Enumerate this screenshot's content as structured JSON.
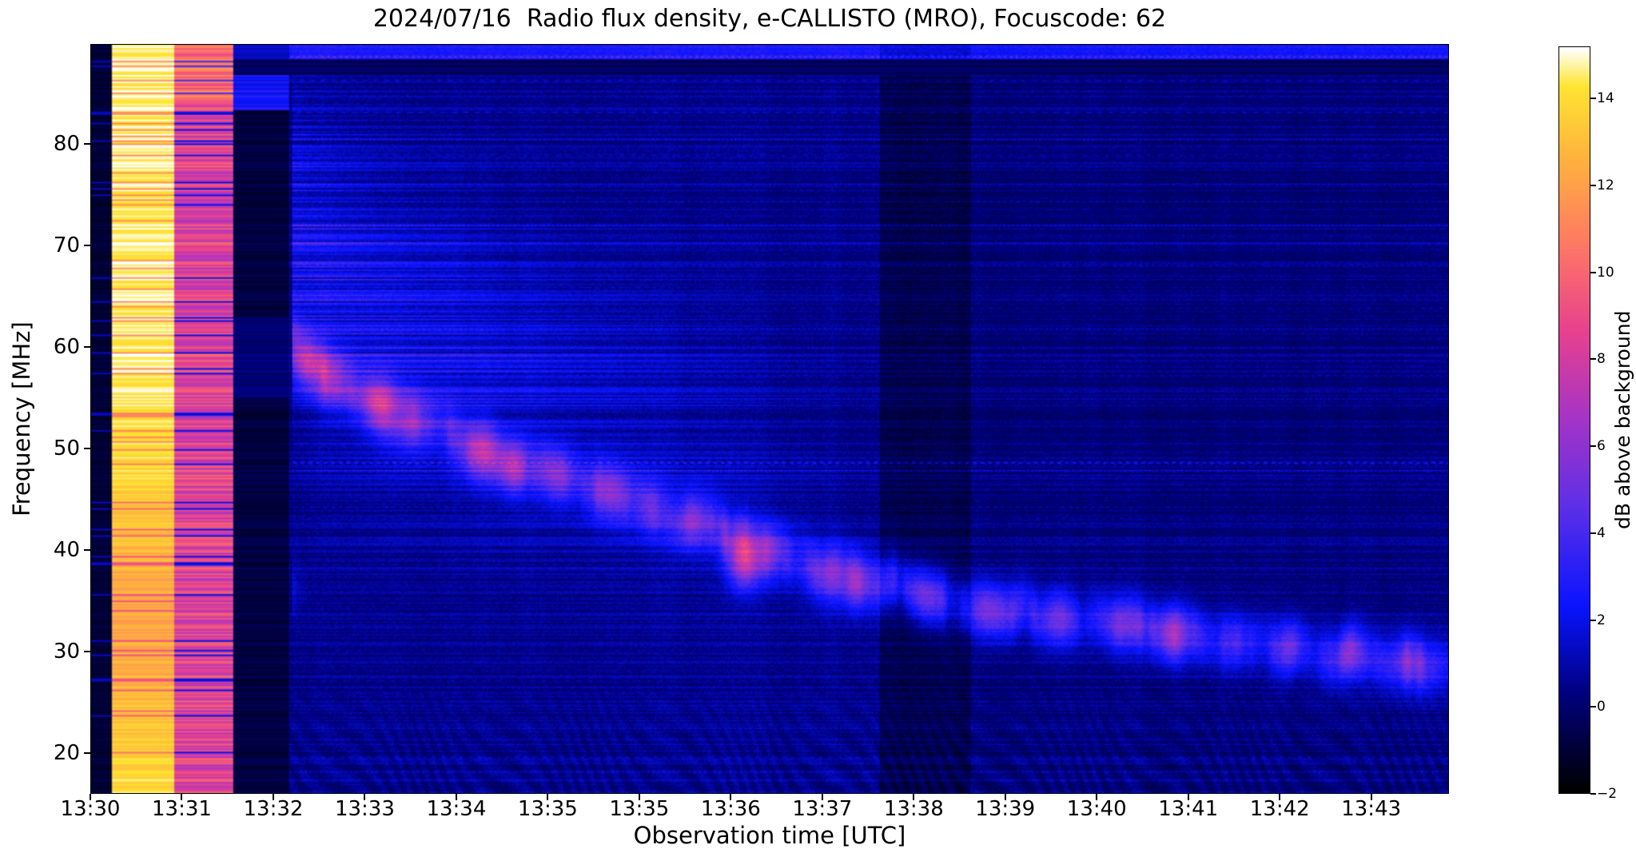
{
  "chart_data": {
    "type": "heatmap",
    "title": "2024/07/16  Radio flux density, e-CALLISTO (MRO), Focuscode: 62",
    "xlabel": "Observation time [UTC]",
    "ylabel": "Frequency [MHz]",
    "x_tick_labels": [
      "13:30",
      "13:31",
      "13:32",
      "13:33",
      "13:34",
      "13:35",
      "13:35",
      "13:36",
      "13:37",
      "13:38",
      "13:39",
      "13:40",
      "13:41",
      "13:42",
      "13:43"
    ],
    "x_range_tick_units": [
      0,
      14.85
    ],
    "y_ticks": [
      20,
      30,
      40,
      50,
      60,
      70,
      80
    ],
    "y_range_mhz": [
      16,
      89.8
    ],
    "colorbar": {
      "label": "dB above background",
      "ticks": [
        -2,
        0,
        2,
        4,
        6,
        8,
        10,
        12,
        14
      ],
      "tick_labels": [
        "−2",
        "0",
        "2",
        "4",
        "6",
        "8",
        "10",
        "12",
        "14"
      ],
      "range": [
        -2,
        15.2
      ]
    },
    "colormap_stops": [
      [
        0,
        "#000000"
      ],
      [
        0.13,
        "#00007d"
      ],
      [
        0.25,
        "#0a14ff"
      ],
      [
        0.38,
        "#5b2fe8"
      ],
      [
        0.5,
        "#a433c8"
      ],
      [
        0.62,
        "#e8418e"
      ],
      [
        0.74,
        "#ff7a63"
      ],
      [
        0.86,
        "#ffb63c"
      ],
      [
        0.95,
        "#ffe532"
      ],
      [
        1,
        "#ffffff"
      ]
    ],
    "features": {
      "description": "Slow-drifting solar radio burst lane drifting from ~60 MHz at 13:32 down to ~29 MHz at the right edge; saturated calibration columns at 13:30-13:31; dark data-gap band near 13:39; horizontal RFI lines; dB values in tick units (x) and MHz (y).",
      "burst_track_points": [
        [
          2.2,
          60.5
        ],
        [
          2.5,
          58
        ],
        [
          3,
          55
        ],
        [
          3.5,
          53
        ],
        [
          4,
          51
        ],
        [
          4.5,
          49
        ],
        [
          5,
          47.5
        ],
        [
          5.5,
          46
        ],
        [
          6,
          44.5
        ],
        [
          6.5,
          43
        ],
        [
          7,
          41.5
        ],
        [
          7.5,
          40
        ],
        [
          8,
          38.5
        ],
        [
          8.5,
          37
        ],
        [
          9,
          36
        ],
        [
          9.5,
          35
        ],
        [
          10,
          34.3
        ],
        [
          10.5,
          33.7
        ],
        [
          11,
          33.2
        ],
        [
          11.5,
          32.6
        ],
        [
          12,
          32
        ],
        [
          12.5,
          31.3
        ],
        [
          13,
          30.6
        ],
        [
          13.5,
          30
        ],
        [
          14,
          29.5
        ],
        [
          14.85,
          28.8
        ]
      ],
      "hotspots": [
        [
          2.05,
          36,
          2.2
        ],
        [
          2.35,
          58.5,
          3.5
        ],
        [
          2.6,
          57,
          2.5
        ],
        [
          3.15,
          54.5,
          4.5
        ],
        [
          3.5,
          53,
          3
        ],
        [
          4.25,
          50,
          4
        ],
        [
          4.6,
          48.5,
          2.5
        ],
        [
          5.1,
          47,
          2.5
        ],
        [
          5.65,
          45.5,
          3
        ],
        [
          6.1,
          44,
          2.5
        ],
        [
          6.55,
          42.8,
          3
        ],
        [
          7.15,
          38.8,
          5.5
        ],
        [
          7.45,
          40.2,
          2.5
        ],
        [
          8.05,
          37.6,
          3
        ],
        [
          8.35,
          36.6,
          3.5
        ],
        [
          9.2,
          35.6,
          2.2
        ],
        [
          9.9,
          34.2,
          2.5
        ],
        [
          10.6,
          33.6,
          2.2
        ],
        [
          11.3,
          33,
          2.4
        ],
        [
          11.85,
          31.6,
          4.5
        ],
        [
          12.5,
          31.2,
          2.2
        ],
        [
          13.1,
          30.4,
          2.8
        ],
        [
          13.8,
          29.8,
          2.2
        ],
        [
          14.4,
          29.2,
          2.5
        ]
      ],
      "rfi_lines": [
        [
          88.7,
          2
        ],
        [
          86.3,
          1.2
        ],
        [
          83.2,
          1.4
        ],
        [
          80.6,
          1.1
        ],
        [
          79,
          0.9
        ],
        [
          76.2,
          0.8
        ],
        [
          74.4,
          1
        ],
        [
          72.1,
          1.2
        ],
        [
          70.4,
          0.8
        ],
        [
          68.2,
          1
        ],
        [
          66,
          0.7
        ],
        [
          63.9,
          0.8
        ],
        [
          61.8,
          0.9
        ],
        [
          59.9,
          0.7
        ],
        [
          57.3,
          0.8
        ],
        [
          55,
          0.6
        ],
        [
          48.7,
          2.6
        ],
        [
          47.8,
          1.2
        ],
        [
          44.2,
          0.9
        ],
        [
          43.1,
          0.7
        ],
        [
          41,
          0.6
        ],
        [
          38.6,
          0.8
        ],
        [
          36.2,
          0.5
        ],
        [
          33,
          0.6
        ],
        [
          30.1,
          0.5
        ],
        [
          27.2,
          0.7
        ],
        [
          24,
          0.5
        ],
        [
          22.4,
          0.8
        ],
        [
          19.6,
          1
        ],
        [
          18.2,
          0.9
        ]
      ],
      "calibration_columns": [
        {
          "u_start": 0,
          "u_end": 0.22,
          "type": "dark"
        },
        {
          "u_start": 0.22,
          "u_end": 0.9,
          "type": "saturated-white"
        },
        {
          "u_start": 0.9,
          "u_end": 1.55,
          "type": "pink"
        },
        {
          "u_start": 1.55,
          "u_end": 2.15,
          "type": "black-gap"
        }
      ],
      "dark_time_band_u": [
        8.62,
        9.62
      ],
      "dim_after_u": 9.62,
      "top_dark_band_mhz": [
        86.9,
        88.4
      ],
      "top_blue_line_mhz": 88.5
    }
  }
}
